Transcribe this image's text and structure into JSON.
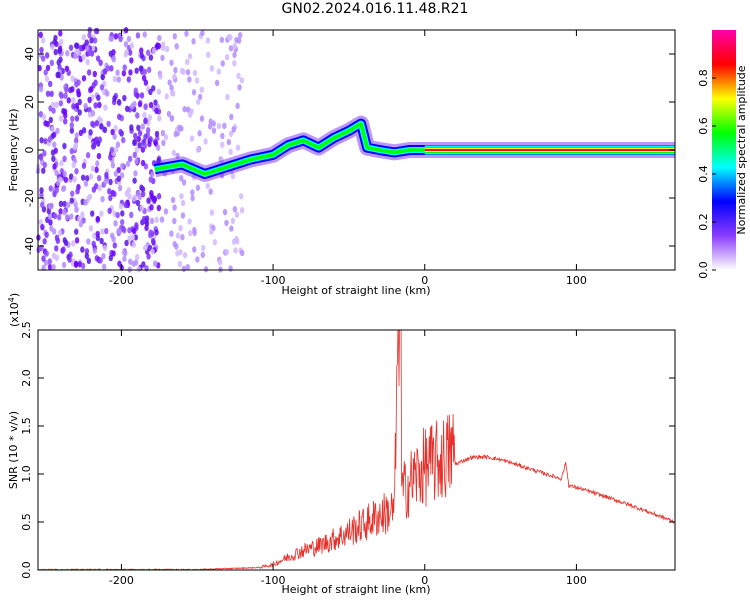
{
  "title": "GN02.2024.016.11.48.R21",
  "chart_data": [
    {
      "type": "heatmap",
      "xlabel": "Height of straight line (km)",
      "ylabel": "Frequency (Hz)",
      "xlim": [
        -255,
        165
      ],
      "ylim": [
        -50,
        50
      ],
      "x_ticks": [
        -200,
        -100,
        0,
        100
      ],
      "y_ticks": [
        -40,
        -20,
        0,
        20,
        40
      ],
      "colorbar": {
        "label": "Normalized spectral amplitude",
        "range": [
          0.0,
          1.0
        ],
        "ticks": [
          0.0,
          0.2,
          0.4,
          0.6,
          0.8
        ],
        "colors": [
          "#ffffff",
          "#8a3cff",
          "#0000ff",
          "#00ffff",
          "#00ff00",
          "#ffff00",
          "#ff0000",
          "#ff00aa"
        ]
      },
      "ridge": [
        [
          -178,
          -8
        ],
        [
          -160,
          -6
        ],
        [
          -145,
          -10
        ],
        [
          -130,
          -7
        ],
        [
          -115,
          -4
        ],
        [
          -100,
          -2
        ],
        [
          -90,
          2
        ],
        [
          -80,
          4
        ],
        [
          -70,
          1
        ],
        [
          -60,
          5
        ],
        [
          -50,
          8
        ],
        [
          -42,
          11
        ],
        [
          -38,
          1
        ],
        [
          -30,
          0
        ],
        [
          -20,
          -1
        ],
        [
          -10,
          0
        ],
        [
          0,
          0
        ],
        [
          50,
          0
        ],
        [
          78,
          0
        ],
        [
          100,
          0
        ],
        [
          165,
          0
        ]
      ]
    },
    {
      "type": "line",
      "xlabel": "Height of straight line (km)",
      "ylabel": "SNR (10 * v/v)",
      "y_multiplier_label": "(x10",
      "y_multiplier_exp": "4",
      "xlim": [
        -255,
        165
      ],
      "ylim": [
        0,
        2.5
      ],
      "x_ticks": [
        -200,
        -100,
        0,
        100
      ],
      "y_ticks": [
        "0.0",
        "0.5",
        "1.0",
        "1.5",
        "2.0",
        "2.5"
      ],
      "color": "#e8302a",
      "series": [
        {
          "x": [
            -255,
            -200,
            -150,
            -110,
            -100,
            -90,
            -80,
            -70,
            -60,
            -50,
            -40,
            -30,
            -20,
            -17,
            -16,
            -15,
            -10,
            0,
            10,
            20,
            30,
            40,
            50,
            60,
            70,
            80,
            90,
            93,
            95,
            100,
            120,
            140,
            165
          ],
          "y": [
            0.0,
            0.0,
            0.0,
            0.02,
            0.05,
            0.12,
            0.18,
            0.22,
            0.28,
            0.35,
            0.42,
            0.5,
            0.55,
            2.6,
            0.8,
            0.7,
            0.8,
            0.95,
            1.0,
            1.1,
            1.17,
            1.18,
            1.15,
            1.1,
            1.05,
            1.0,
            0.95,
            1.12,
            0.88,
            0.86,
            0.76,
            0.65,
            0.5
          ]
        }
      ]
    }
  ]
}
